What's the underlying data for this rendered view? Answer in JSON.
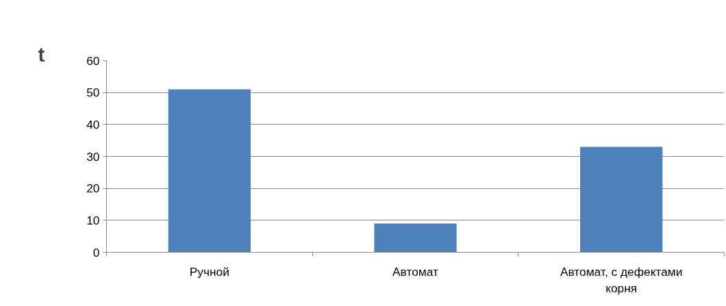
{
  "chart_data": {
    "type": "bar",
    "ylabel": "t",
    "categories": [
      "Ручной",
      "Автомат",
      "Автомат, с дефектами корня"
    ],
    "values": [
      51,
      9,
      33
    ],
    "color": "#4f81bd",
    "ylim": [
      0,
      60
    ],
    "yticks": [
      0,
      10,
      20,
      30,
      40,
      50,
      60
    ],
    "grid": "y"
  }
}
